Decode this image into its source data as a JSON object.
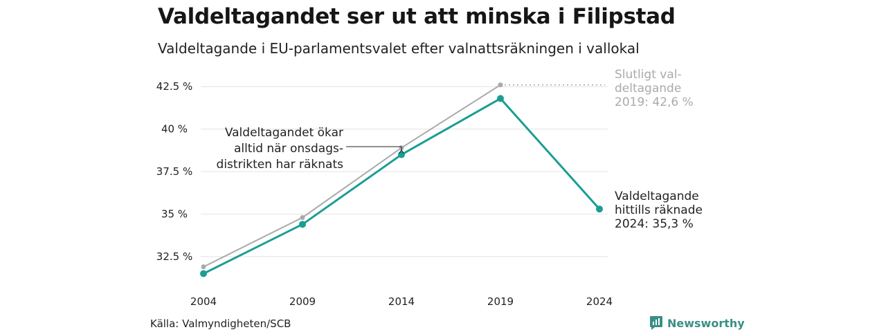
{
  "header": {
    "title": "Valdeltagandet ser ut att minska i Filipstad",
    "subtitle": "Valdeltagande i EU-parlamentsvalet efter valnattsräkningen i vallokal"
  },
  "chart_data": {
    "type": "line",
    "x": [
      2004,
      2009,
      2014,
      2019,
      2024
    ],
    "xticks": [
      "2004",
      "2009",
      "2014",
      "2019",
      "2024"
    ],
    "ylim": [
      31.2,
      43.2
    ],
    "yticks": [
      32.5,
      35,
      37.5,
      40,
      42.5
    ],
    "ytick_labels": [
      "32.5 %",
      "35 %",
      "37.5 %",
      "40 %",
      "42.5 %"
    ],
    "grid": true,
    "series": [
      {
        "key": "final",
        "color": "#aaaaaa",
        "values": [
          31.9,
          34.8,
          38.9,
          42.6,
          null
        ]
      },
      {
        "key": "counted",
        "color": "#1a9e94",
        "values": [
          31.5,
          34.4,
          38.5,
          41.8,
          35.3
        ]
      }
    ],
    "annotations": {
      "final_2019": {
        "lines": [
          "Slutligt val-",
          "deltagande",
          "2019: 42,6 %"
        ],
        "color": "#aaaaaa"
      },
      "counted_2024": {
        "lines": [
          "Valdeltagande",
          "hittills räknade",
          "2024: 35,3 %"
        ],
        "color": "#222222"
      },
      "note": {
        "lines": [
          "Valdeltagandet ökar",
          "alltid när onsdags-",
          "distrikten har räknats"
        ],
        "color": "#222222"
      }
    }
  },
  "footer": {
    "source": "Källa: Valmyndigheten/SCB",
    "brand": "Newsworthy",
    "brand_color": "#3a8f86"
  }
}
